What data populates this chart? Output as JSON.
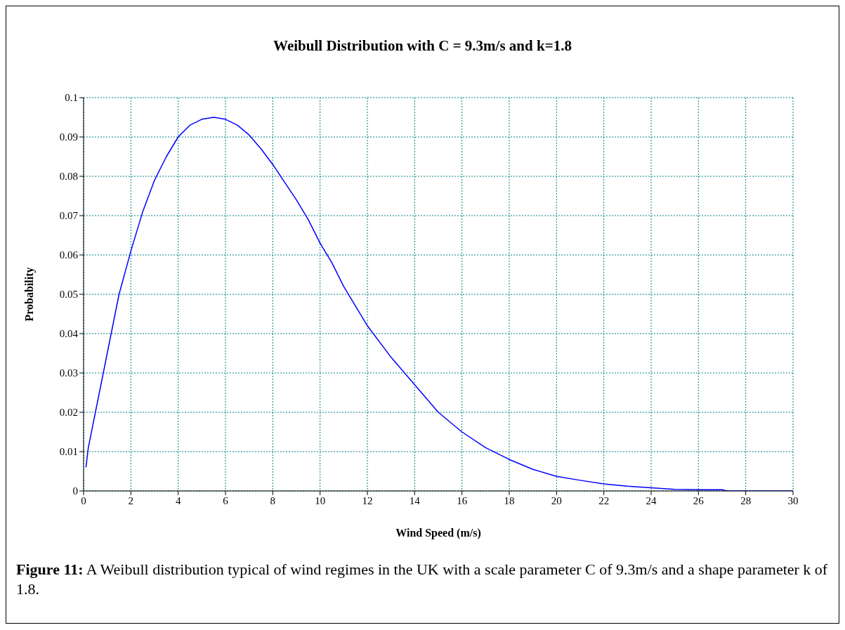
{
  "chart_data": {
    "type": "line",
    "title": "Weibull Distribution with C = 9.3m/s and k=1.8",
    "xlabel": "Wind Speed (m/s)",
    "ylabel": "Probability",
    "annotations": [
      "Figure 11: A Weibull distribution typical of wind regimes in the UK with a scale parameter C of 9.3m/s and a shape parameter k of 1.8."
    ],
    "x": [
      0.1,
      0.2,
      0.5,
      1,
      1.5,
      2,
      2.5,
      3,
      3.5,
      4,
      4.5,
      5,
      5.5,
      6,
      6.5,
      7,
      7.5,
      8,
      8.5,
      9,
      9.5,
      10,
      10.5,
      11,
      11.5,
      12,
      13,
      14,
      15,
      16,
      17,
      18,
      19,
      20,
      21,
      22,
      23,
      24,
      25,
      26,
      27,
      27.2,
      28,
      30
    ],
    "series": [
      {
        "color": "#0000ff",
        "values": [
          0.006,
          0.011,
          0.02,
          0.035,
          0.05,
          0.061,
          0.071,
          0.079,
          0.085,
          0.09,
          0.093,
          0.0945,
          0.095,
          0.0945,
          0.093,
          0.0905,
          0.087,
          0.083,
          0.0785,
          0.074,
          0.069,
          0.063,
          0.058,
          0.052,
          0.047,
          0.042,
          0.034,
          0.027,
          0.02,
          0.015,
          0.011,
          0.008,
          0.0055,
          0.0037,
          0.0027,
          0.0018,
          0.0012,
          0.0008,
          0.0004,
          0.0003,
          0.0003,
          0,
          0,
          0
        ]
      }
    ],
    "xlim": [
      0,
      30
    ],
    "xticks": [
      0,
      2,
      4,
      6,
      8,
      10,
      12,
      14,
      16,
      18,
      20,
      22,
      24,
      26,
      28,
      30
    ],
    "ylim": [
      0,
      0.1
    ],
    "yticks": [
      0,
      0.01,
      0.02,
      0.03,
      0.04,
      0.05,
      0.06,
      0.07,
      0.08,
      0.09,
      0.1
    ],
    "grid": true,
    "legend": false,
    "marker": "none",
    "line_style": "solid"
  }
}
